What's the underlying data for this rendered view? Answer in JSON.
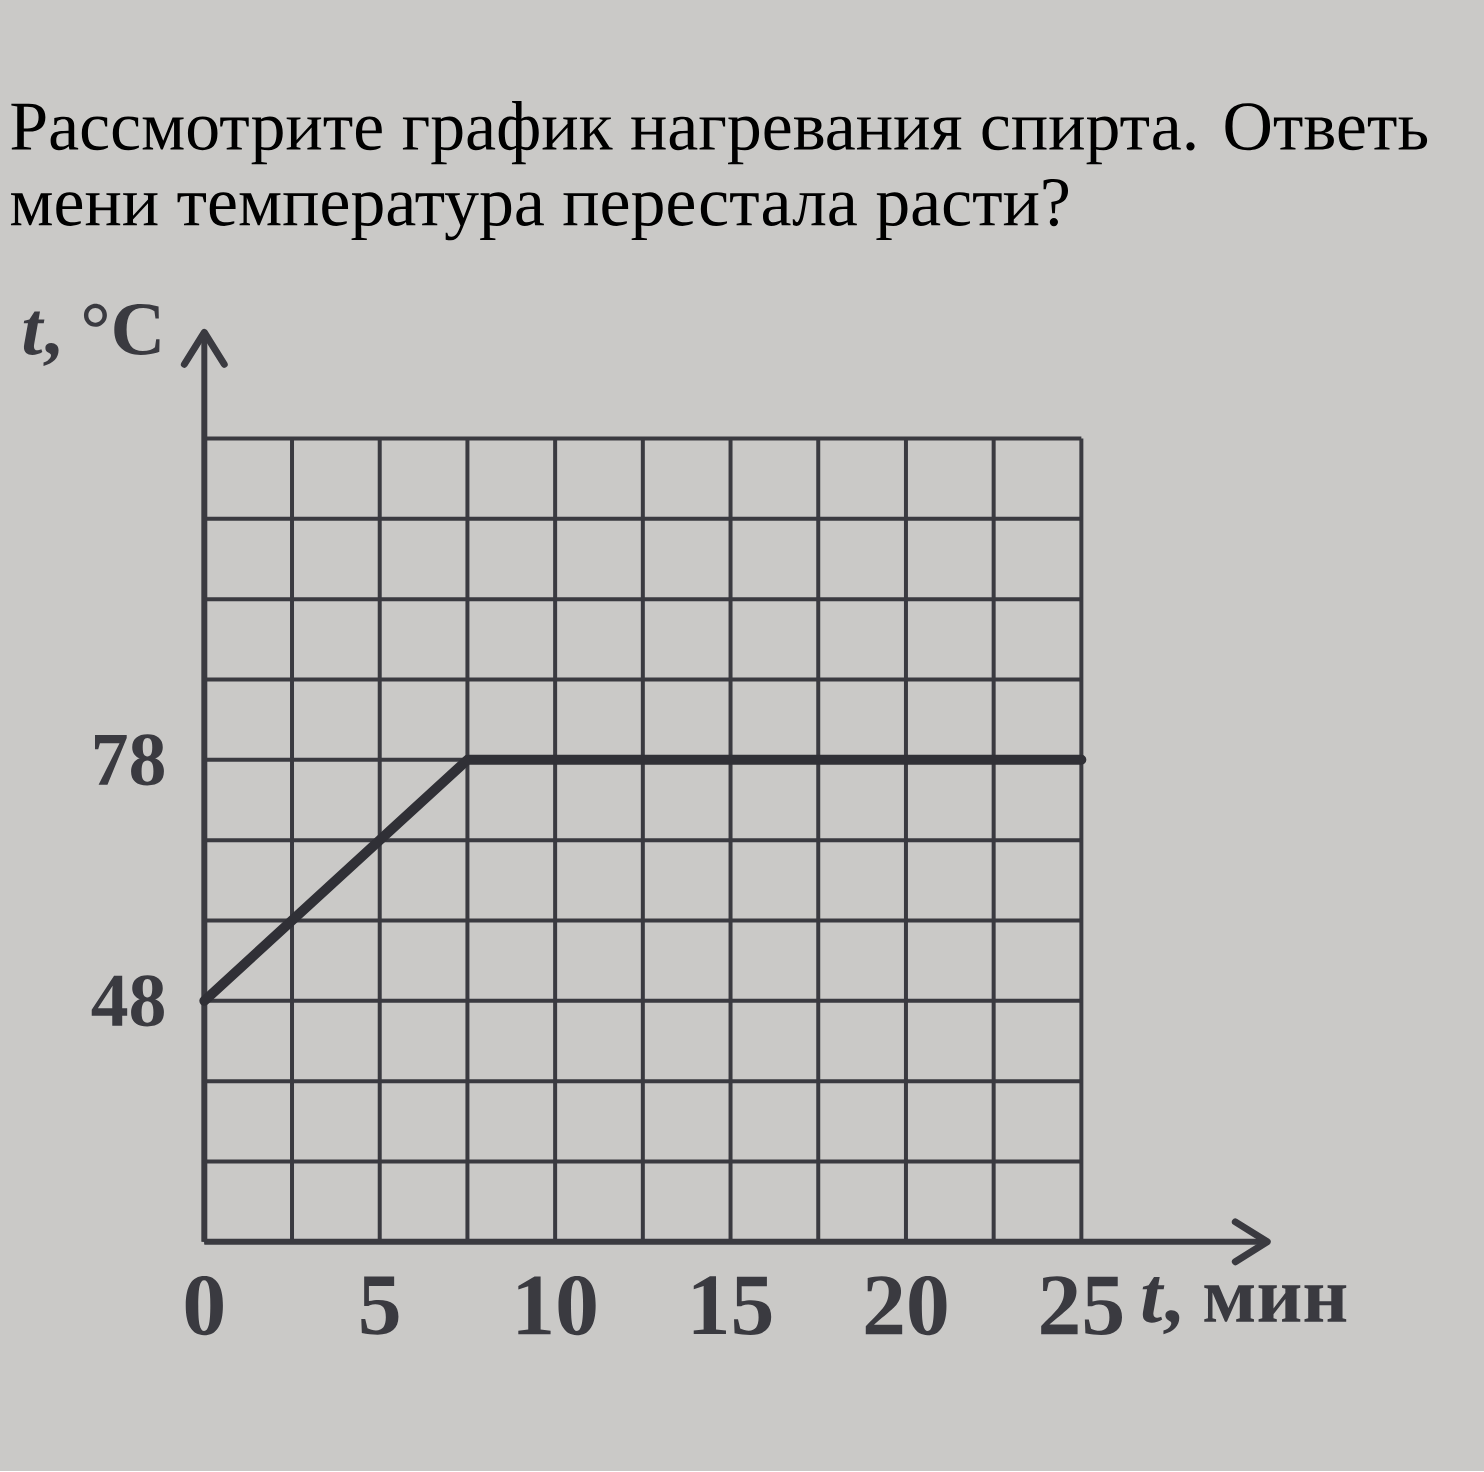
{
  "chart_data": {
    "type": "line",
    "title": "Рассмотрите график нагревания спирта. Ответь",
    "subtitle": "мени температура перестала расти?",
    "xlabel": "*t*, мин",
    "ylabel": "*t*, °C",
    "x": [
      0,
      7.5,
      25
    ],
    "series": [
      {
        "color": "#303036",
        "values": [
          48,
          78,
          78
        ]
      }
    ],
    "xlim": [
      0,
      25
    ],
    "ylim": [
      18,
      118
    ],
    "xticks": [
      0,
      {
        "value": 2.5,
        "label": null
      },
      5,
      {
        "value": 7.5,
        "label": null
      },
      10,
      {
        "value": 12.5,
        "label": null
      },
      15,
      {
        "value": 17.5,
        "label": null
      },
      20,
      {
        "value": 22.5,
        "label": null
      },
      25
    ],
    "yticks": [
      {
        "value": 18,
        "label": null
      },
      {
        "value": 28,
        "label": null
      },
      {
        "value": 38,
        "label": null
      },
      48,
      {
        "value": 58,
        "label": null
      },
      {
        "value": 68,
        "label": null
      },
      78,
      {
        "value": 88,
        "label": null
      },
      {
        "value": 98,
        "label": null
      },
      {
        "value": 108,
        "label": null
      },
      {
        "value": 118,
        "label": null
      }
    ],
    "grid": true,
    "line_style": "solid"
  }
}
